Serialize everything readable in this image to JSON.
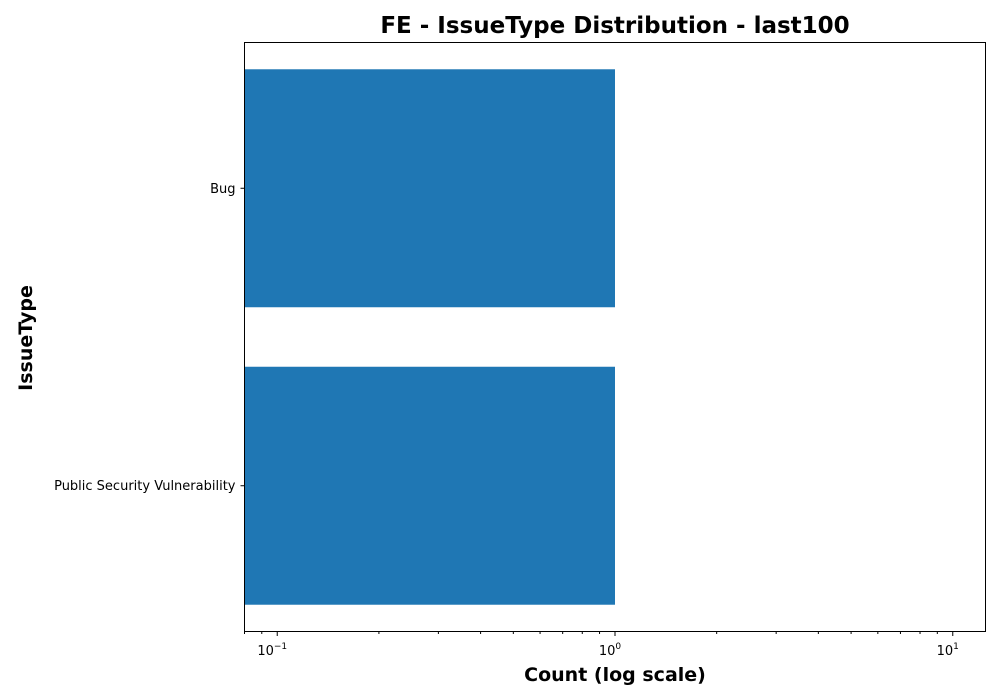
{
  "chart_data": {
    "type": "bar",
    "orientation": "horizontal",
    "title": "FE - IssueType Distribution - last100",
    "xlabel": "Count (log scale)",
    "ylabel": "IssueType",
    "x_scale": "log",
    "xlim": [
      0.08,
      12.5
    ],
    "x_ticks": [
      {
        "value": 0.1,
        "base": "10",
        "exp": "−1"
      },
      {
        "value": 1,
        "base": "10",
        "exp": "0"
      },
      {
        "value": 10,
        "base": "10",
        "exp": "1"
      }
    ],
    "categories": [
      "Bug",
      "Public Security Vulnerability"
    ],
    "values": [
      1,
      1
    ],
    "bar_color": "#1f77b4",
    "grid": false,
    "legend": "none"
  }
}
